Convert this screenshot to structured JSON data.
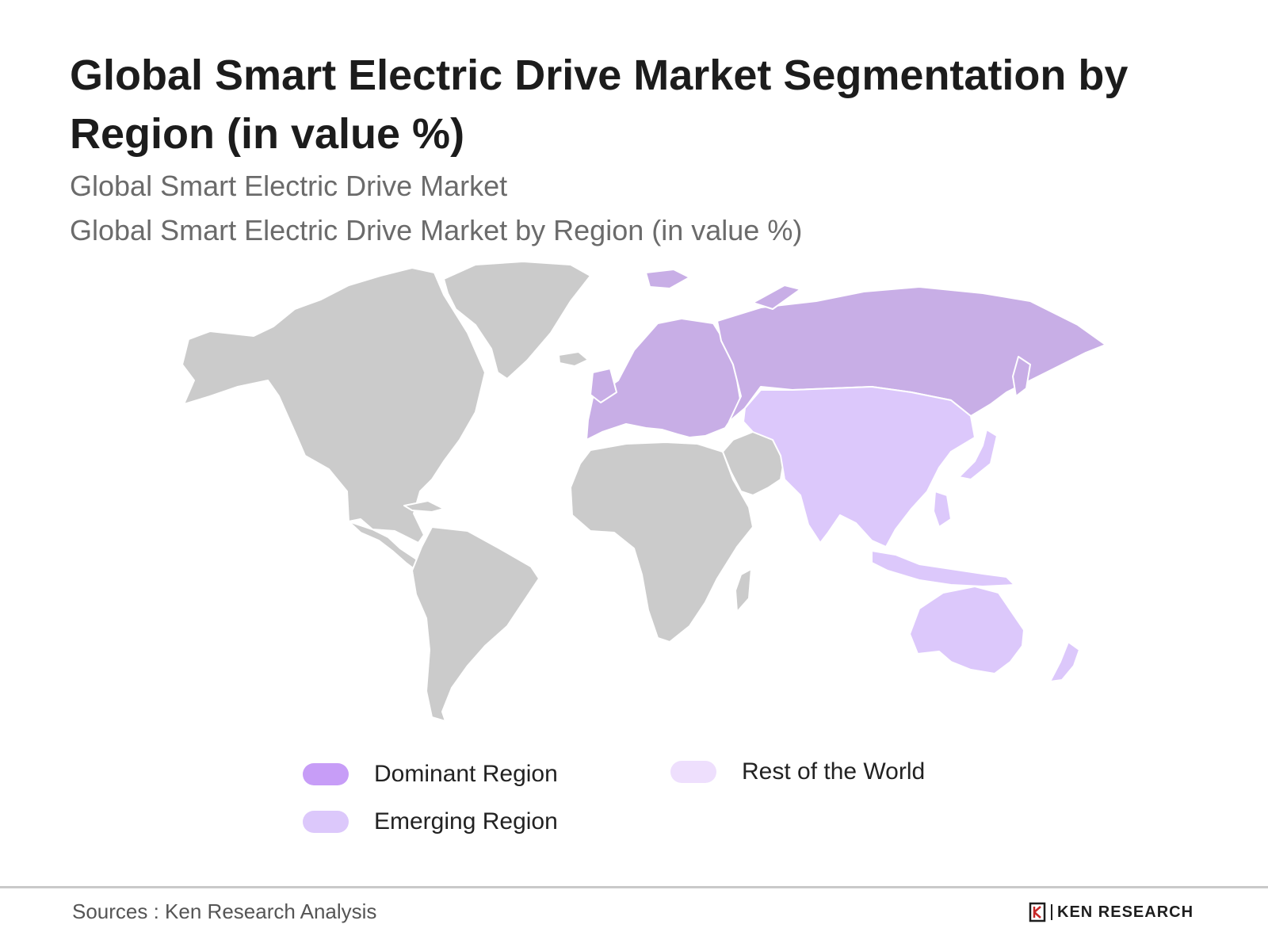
{
  "header": {
    "title": "Global Smart Electric Drive Market Segmentation by Region (in value %)",
    "subtitle_1": "Global Smart Electric Drive Market",
    "subtitle_2": "Global Smart Electric Drive Market by Region (in value %)"
  },
  "map": {
    "regions": [
      {
        "name": "North America",
        "category": "none"
      },
      {
        "name": "South America",
        "category": "none"
      },
      {
        "name": "Greenland",
        "category": "none"
      },
      {
        "name": "Africa",
        "category": "none"
      },
      {
        "name": "Middle East",
        "category": "none"
      },
      {
        "name": "Europe",
        "category": "dominant"
      },
      {
        "name": "Russia",
        "category": "dominant"
      },
      {
        "name": "Asia",
        "category": "emerging"
      },
      {
        "name": "Oceania",
        "category": "emerging"
      }
    ]
  },
  "legend": {
    "dominant": {
      "label": "Dominant Region",
      "color": "#c79df7"
    },
    "emerging": {
      "label": "Emerging Region",
      "color": "#dcc8fb"
    },
    "rest": {
      "label": "Rest of the World",
      "color": "#eedffd"
    }
  },
  "colors": {
    "land_default": "#cbcbcb",
    "map_dominant": "#c8aee6",
    "map_emerging": "#dcc8fb"
  },
  "footer": {
    "source": "Sources : Ken Research Analysis",
    "logo_text": "KEN RESEARCH",
    "logo_icon": "ken-research-logo-icon"
  }
}
